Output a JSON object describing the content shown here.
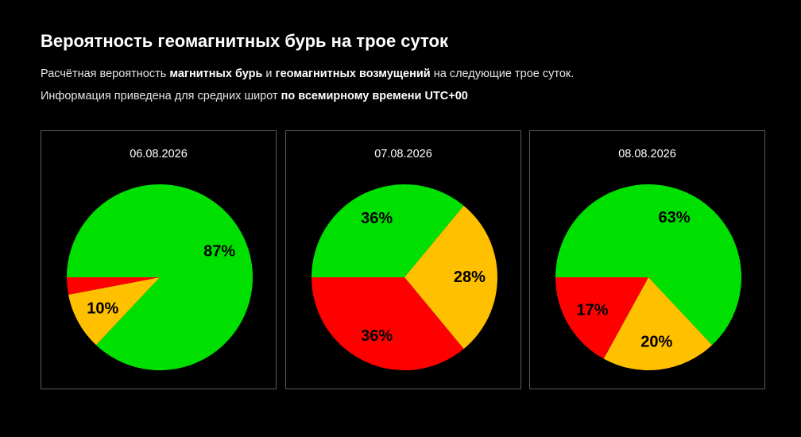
{
  "header": {
    "title": "Вероятность геомагнитных бурь на трое суток",
    "line1": {
      "t1": "Расчётная вероятность ",
      "b1": "магнитных бурь",
      "t2": " и ",
      "b2": "геомагнитных возмущений",
      "t3": " на следующие трое суток."
    },
    "line2": {
      "t1": "Информация приведена для средних широт ",
      "b1": "по всемирному времени UTC+00"
    }
  },
  "colors": {
    "green": "#00e000",
    "yellow": "#ffc000",
    "red": "#ff0000",
    "background": "#000000",
    "border": "#5a5a5a"
  },
  "chart_data": [
    {
      "type": "pie",
      "title": "06.08.2026",
      "slices": [
        {
          "value": 87,
          "label": "87%",
          "color": "#00e000"
        },
        {
          "value": 10,
          "label": "10%",
          "color": "#ffc000"
        },
        {
          "value": 3,
          "label": "",
          "color": "#ff0000"
        }
      ]
    },
    {
      "type": "pie",
      "title": "07.08.2026",
      "slices": [
        {
          "value": 36,
          "label": "36%",
          "color": "#00e000"
        },
        {
          "value": 28,
          "label": "28%",
          "color": "#ffc000"
        },
        {
          "value": 36,
          "label": "36%",
          "color": "#ff0000"
        }
      ]
    },
    {
      "type": "pie",
      "title": "08.08.2026",
      "slices": [
        {
          "value": 63,
          "label": "63%",
          "color": "#00e000"
        },
        {
          "value": 20,
          "label": "20%",
          "color": "#ffc000"
        },
        {
          "value": 17,
          "label": "17%",
          "color": "#ff0000"
        }
      ]
    }
  ]
}
